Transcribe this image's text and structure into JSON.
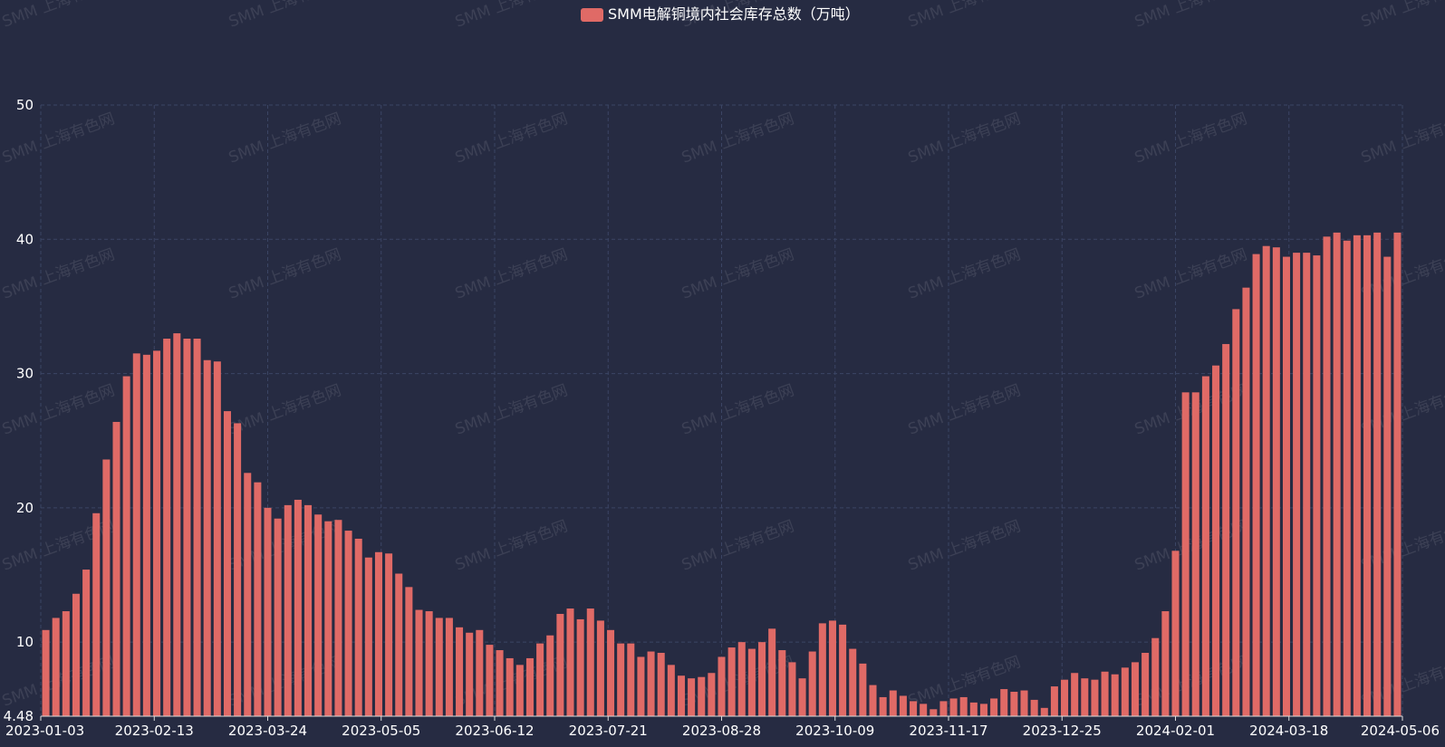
{
  "chart_data": {
    "type": "bar",
    "legend": {
      "label": "SMM电解铜境内社会库存总数（万吨）",
      "position": "top-center",
      "color": "#e06a66"
    },
    "watermark": "SMM 上海有色网",
    "ylim": [
      4.48,
      50
    ],
    "y_ticks": [
      4.48,
      10,
      20,
      30,
      40,
      50
    ],
    "y_tick_labels": [
      "4.48",
      "10",
      "20",
      "30",
      "40",
      "50"
    ],
    "x_tick_labels": [
      "2023-01-03",
      "2023-02-13",
      "2023-03-24",
      "2023-05-05",
      "2023-06-12",
      "2023-07-21",
      "2023-08-28",
      "2023-10-09",
      "2023-11-17",
      "2023-12-25",
      "2024-02-01",
      "2024-03-18",
      "2024-05-06"
    ],
    "grid": true,
    "bar_color": "#e06a66",
    "series": [
      {
        "values": [
          10.9,
          11.8,
          12.3,
          13.6,
          15.4,
          19.6,
          23.6,
          26.4,
          29.8,
          31.5,
          31.4,
          31.7,
          32.6,
          33.0,
          32.6,
          32.6,
          31.0,
          30.9,
          27.2,
          26.3,
          22.6,
          21.9,
          20.0,
          19.2,
          20.2,
          20.6,
          20.2,
          19.5,
          19.0,
          19.1,
          18.3,
          17.7,
          16.3,
          16.7,
          16.6,
          15.1,
          14.1,
          12.4,
          12.3,
          11.8,
          11.8,
          11.1,
          10.7,
          10.9,
          9.8,
          9.4,
          8.8,
          8.3,
          8.8,
          9.9,
          10.5,
          12.1,
          12.5,
          11.7,
          12.5,
          11.6,
          10.9,
          9.9,
          9.9,
          8.9,
          9.3,
          9.2,
          8.3,
          7.5,
          7.3,
          7.4,
          7.7,
          8.9,
          9.6,
          10.0,
          9.5,
          10.0,
          11.0,
          9.4,
          8.5,
          7.3,
          9.3,
          11.4,
          11.6,
          11.3,
          9.5,
          8.4,
          6.8,
          5.9,
          6.4,
          6.0,
          5.6,
          5.4,
          5.0,
          5.6,
          5.8,
          5.9,
          5.5,
          5.4,
          5.8,
          6.5,
          6.3,
          6.4,
          5.7,
          5.1,
          6.7,
          7.2,
          7.7,
          7.3,
          7.2,
          7.8,
          7.6,
          8.1,
          8.5,
          9.2,
          10.3,
          12.3,
          16.8,
          28.6,
          28.6,
          29.8,
          30.6,
          32.2,
          34.8,
          36.4,
          38.9,
          39.5,
          39.4,
          38.7,
          39.0,
          39.0,
          38.8,
          40.2,
          40.5,
          39.9,
          40.3,
          40.3,
          40.5,
          38.7,
          40.5
        ]
      }
    ]
  }
}
